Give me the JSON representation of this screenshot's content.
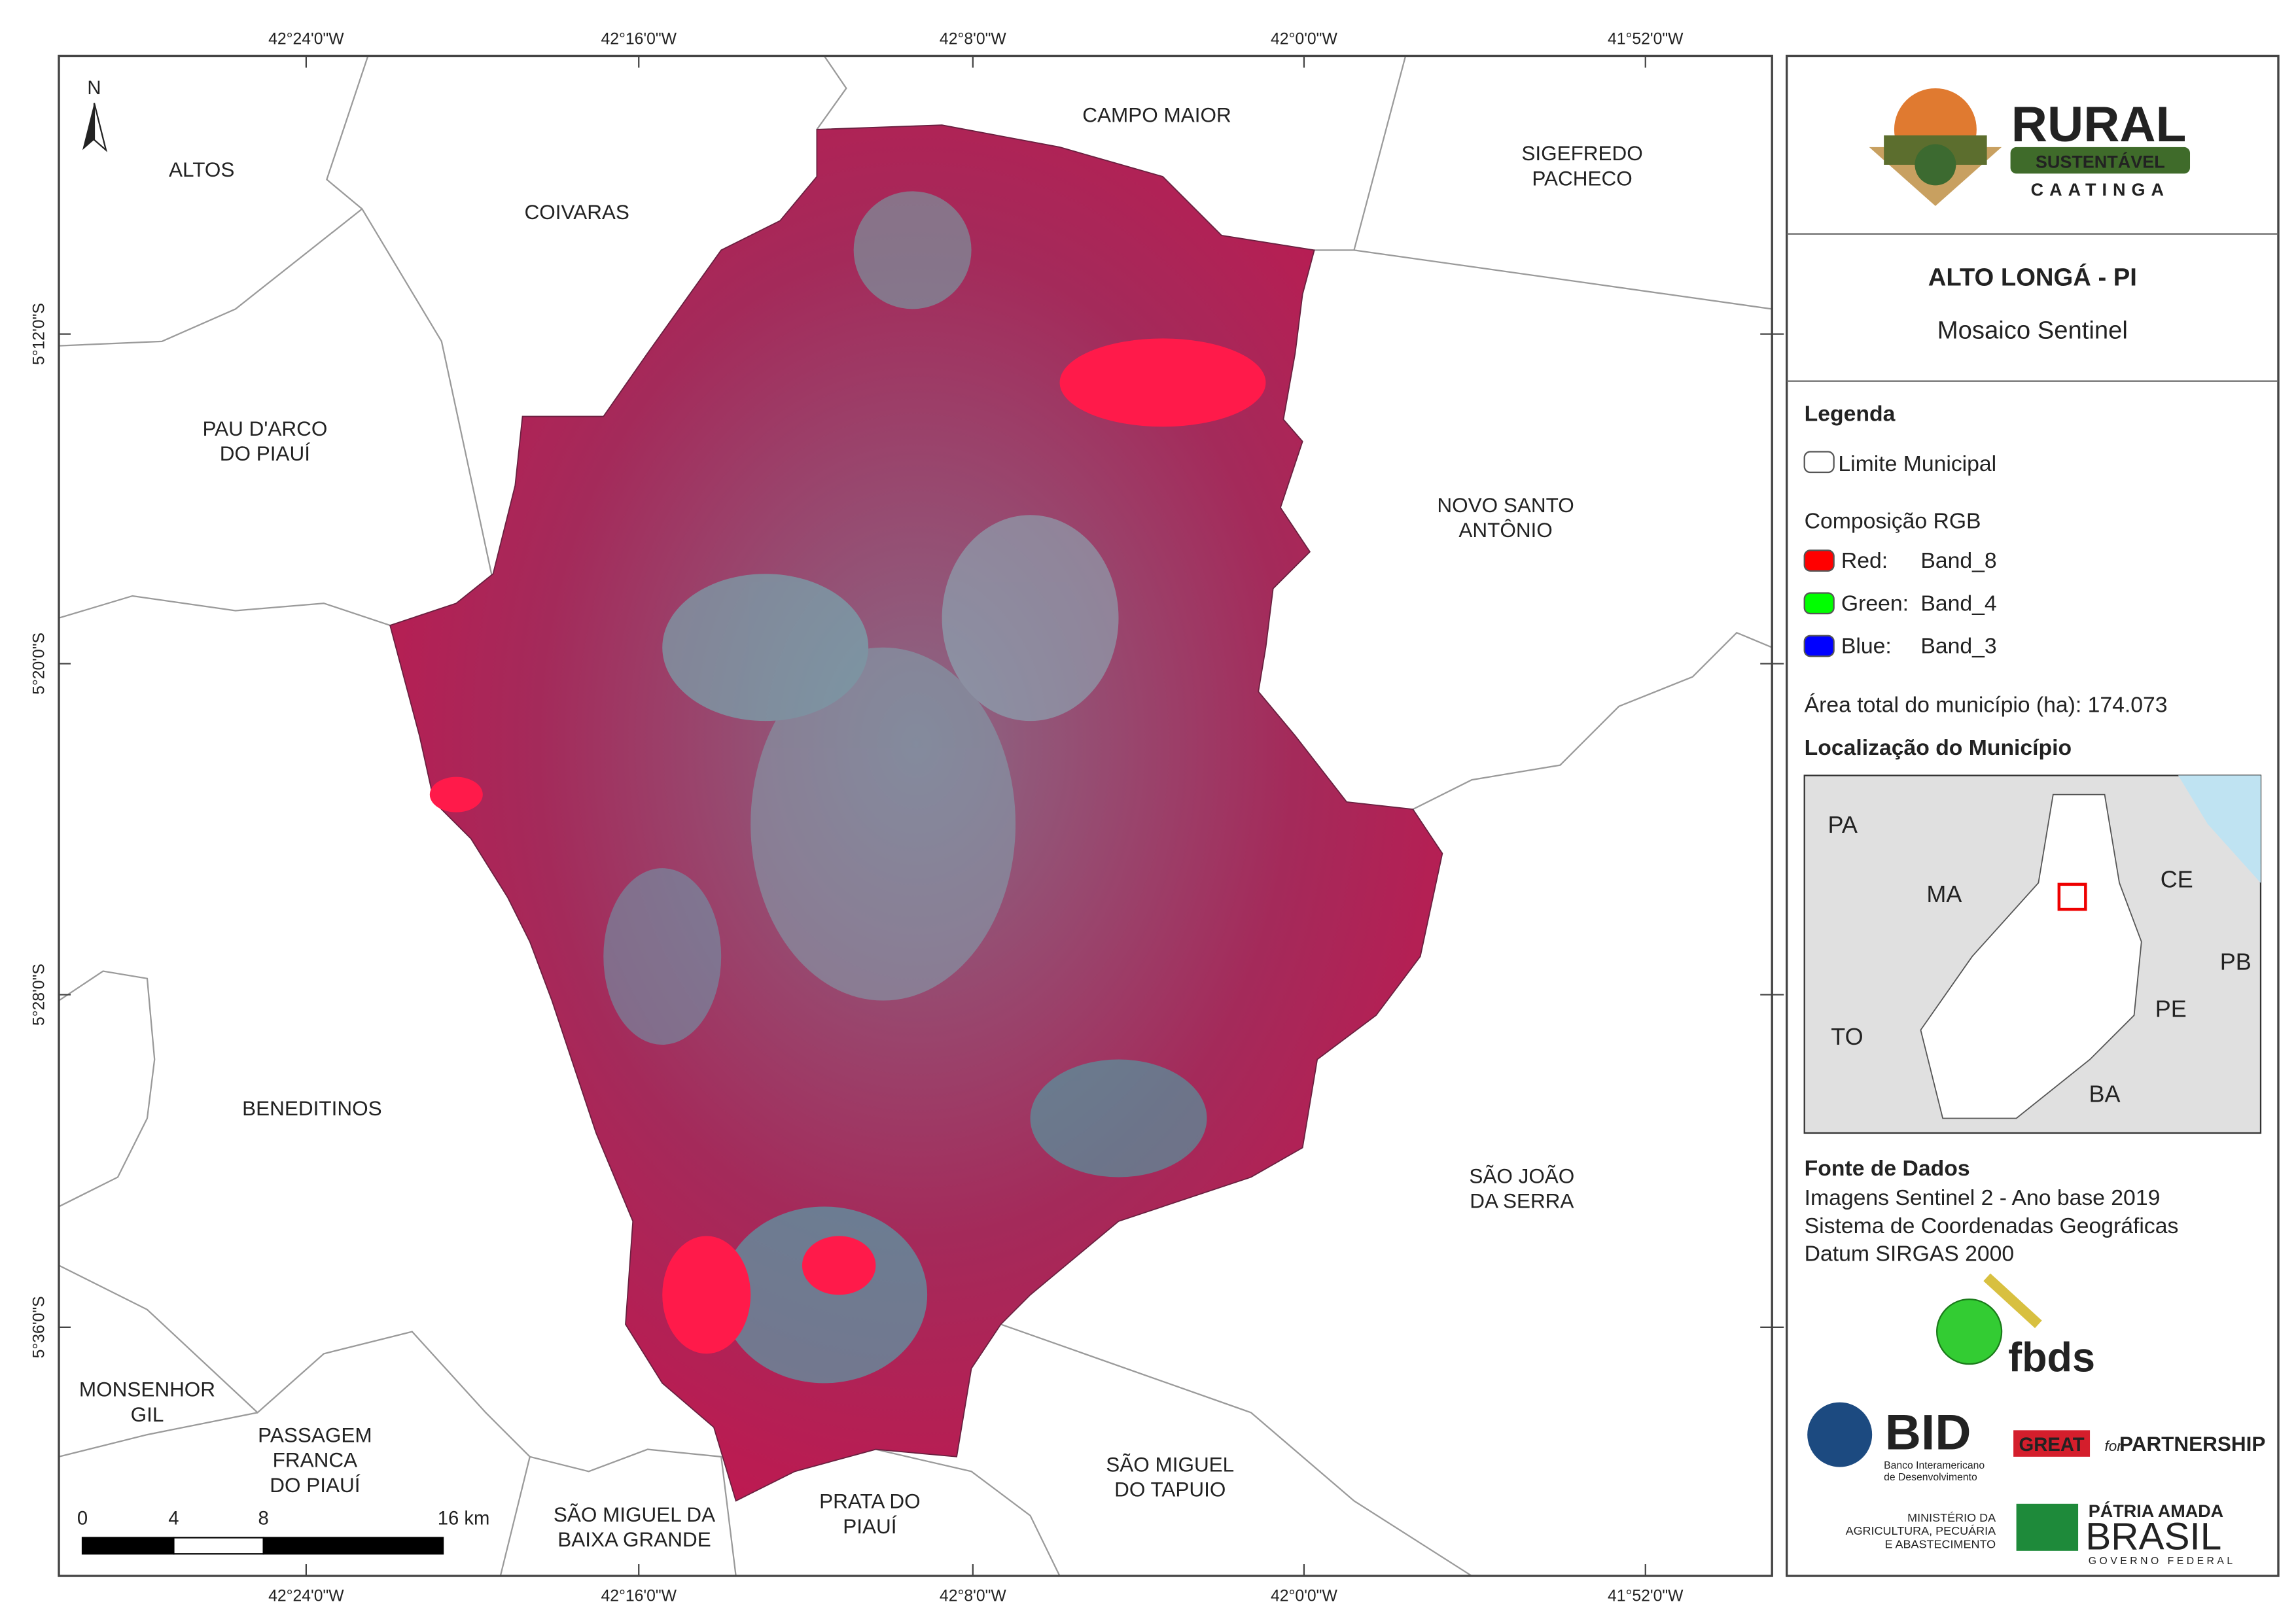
{
  "map": {
    "lon_labels": [
      "42°24'0\"W",
      "42°16'0\"W",
      "42°8'0\"W",
      "42°0'0\"W",
      "41°52'0\"W"
    ],
    "lat_labels": [
      "5°12'0\"S",
      "5°20'0\"S",
      "5°28'0\"S",
      "5°36'0\"S"
    ],
    "north": "N",
    "places": [
      {
        "lines": [
          "ALTOS"
        ]
      },
      {
        "lines": [
          "COIVARAS"
        ]
      },
      {
        "lines": [
          "CAMPO MAIOR"
        ]
      },
      {
        "lines": [
          "SIGEFREDO",
          "PACHECO"
        ]
      },
      {
        "lines": [
          "PAU D'ARCO",
          "DO PIAUÍ"
        ]
      },
      {
        "lines": [
          "NOVO SANTO",
          "ANTÔNIO"
        ]
      },
      {
        "lines": [
          "BENEDITINOS"
        ]
      },
      {
        "lines": [
          "SÃO JOÃO",
          "DA SERRA"
        ]
      },
      {
        "lines": [
          "MONSENHOR",
          "GIL"
        ]
      },
      {
        "lines": [
          "PASSAGEM",
          "FRANCA",
          "DO PIAUÍ"
        ]
      },
      {
        "lines": [
          "SÃO MIGUEL DA",
          "BAIXA GRANDE"
        ]
      },
      {
        "lines": [
          "PRATA DO",
          "PIAUÍ"
        ]
      },
      {
        "lines": [
          "SÃO MIGUEL",
          "DO TAPUIO"
        ]
      }
    ],
    "scale_labels": [
      "0",
      "4",
      "8",
      "16 km"
    ]
  },
  "panel": {
    "logo": {
      "title": "RURAL",
      "subtitle": "SUSTENTÁVEL",
      "tagline": "CAATINGA"
    },
    "title": "ALTO LONGÁ - PI",
    "subtitle": "Mosaico Sentinel",
    "legend": {
      "heading": "Legenda",
      "boundary": "Limite Municipal",
      "rgb_heading": "Composição RGB",
      "bands": [
        {
          "channel": "Red:",
          "band": "Band_8",
          "color": "#ff0000"
        },
        {
          "channel": "Green:",
          "band": "Band_4",
          "color": "#00ff00"
        },
        {
          "channel": "Blue:",
          "band": "Band_3",
          "color": "#0000ff"
        }
      ],
      "area": "Área total do município (ha): 174.073"
    },
    "location": {
      "heading": "Localização do Município",
      "states": [
        "PA",
        "MA",
        "CE",
        "PB",
        "PE",
        "TO",
        "BA"
      ]
    },
    "sources": {
      "heading": "Fonte de Dados",
      "lines": [
        "Imagens Sentinel 2 - Ano base 2019",
        "Sistema de Coordenadas Geográficas",
        "Datum SIRGAS 2000"
      ]
    },
    "partners": {
      "fbds": "fbds",
      "bid": "BID",
      "bid_name": [
        "Banco Interamericano",
        "de Desenvolvimento"
      ],
      "great": "GREAT",
      "for": "for",
      "partnership": "PARTNERSHIP",
      "ministry": [
        "MINISTÉRIO DA",
        "AGRICULTURA, PECUÁRIA",
        "E ABASTECIMENTO"
      ],
      "patria": "PÁTRIA AMADA",
      "brasil": "BRASIL",
      "governo": "GOVERNO FEDERAL"
    }
  }
}
